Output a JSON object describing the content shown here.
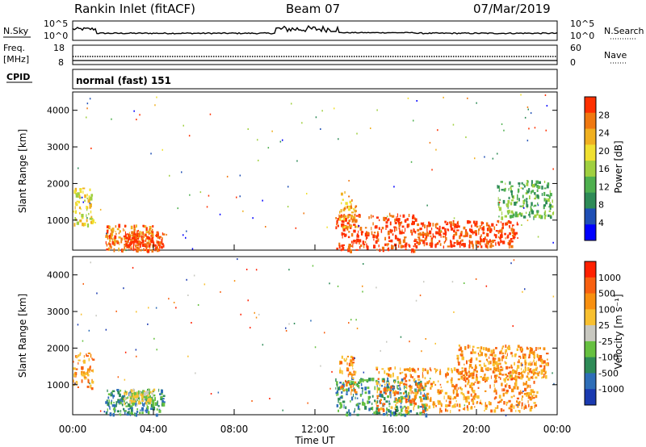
{
  "header": {
    "site": "Rankin Inlet (fitACF)",
    "beam": "Beam 07",
    "date": "07/Mar/2019"
  },
  "nsky_panel": {
    "left_label": "N.Sky",
    "right_label": "N.Search",
    "ticks_left": [
      "10^5",
      "10^0"
    ],
    "ticks_right": [
      "10^5",
      "10^0"
    ]
  },
  "freq_panel": {
    "left_label_1": "Freq.",
    "left_label_2": "[MHz]",
    "right_label": "Nave",
    "ticks_left": [
      "18",
      "8"
    ],
    "ticks_right": [
      "60",
      "0"
    ]
  },
  "cpid_panel": {
    "label": "CPID",
    "text": "normal (fast) 151"
  },
  "chart_data": [
    {
      "type": "heatmap",
      "name": "power",
      "ylabel": "Slant Range [km]",
      "yticks": [
        1000,
        2000,
        3000,
        4000
      ],
      "ylim": [
        180,
        4500
      ],
      "xlim": [
        0,
        24
      ],
      "colorbar_label": "Power [dB]",
      "colorbar_ticks": [
        "4",
        "8",
        "12",
        "16",
        "20",
        "24",
        "28"
      ],
      "colorbar_colors": [
        "#0000ff",
        "#1f4fb5",
        "#2e8b57",
        "#4fb04f",
        "#a0d040",
        "#f0e030",
        "#f0b020",
        "#f07810",
        "#ff3000"
      ],
      "blobs": [
        {
          "t0": 0.0,
          "t1": 1.0,
          "r0": 900,
          "r1": 1900,
          "level": 5
        },
        {
          "t0": 1.6,
          "t1": 4.0,
          "r0": 200,
          "r1": 900,
          "level": 7
        },
        {
          "t0": 2.5,
          "t1": 4.5,
          "r0": 200,
          "r1": 700,
          "level": 8
        },
        {
          "t0": 13.0,
          "t1": 17.0,
          "r0": 200,
          "r1": 1200,
          "level": 8
        },
        {
          "t0": 17.0,
          "t1": 22.0,
          "r0": 300,
          "r1": 1000,
          "level": 8
        },
        {
          "t0": 21.0,
          "t1": 23.8,
          "r0": 1100,
          "r1": 2100,
          "level": 3
        },
        {
          "t0": 13.2,
          "t1": 14.0,
          "r0": 800,
          "r1": 1800,
          "level": 6
        }
      ]
    },
    {
      "type": "heatmap",
      "name": "velocity",
      "ylabel": "Slant Range [km]",
      "yticks": [
        1000,
        2000,
        3000,
        4000
      ],
      "ylim": [
        180,
        4500
      ],
      "xlim": [
        0,
        24
      ],
      "colorbar_label": "Velocity [m s⁻¹]",
      "colorbar_ticks": [
        "1000",
        "500",
        "100",
        "25",
        "-25",
        "-100",
        "-500",
        "-1000"
      ],
      "colorbar_colors": [
        "#1a3ab0",
        "#2e6eb8",
        "#2e8b57",
        "#66c040",
        "#c8c8c0",
        "#f8c030",
        "#f89010",
        "#f86010",
        "#ff2000"
      ],
      "blobs": [
        {
          "t0": 0.0,
          "t1": 1.0,
          "r0": 900,
          "r1": 1900,
          "level": 6
        },
        {
          "t0": 1.6,
          "t1": 4.5,
          "r0": 200,
          "r1": 900,
          "level": 2
        },
        {
          "t0": 2.5,
          "t1": 4.0,
          "r0": 500,
          "r1": 900,
          "level": 4
        },
        {
          "t0": 13.0,
          "t1": 17.5,
          "r0": 200,
          "r1": 1200,
          "level": 2
        },
        {
          "t0": 15.0,
          "t1": 23.0,
          "r0": 300,
          "r1": 1500,
          "level": 6
        },
        {
          "t0": 19.0,
          "t1": 23.5,
          "r0": 1200,
          "r1": 2100,
          "level": 6
        },
        {
          "t0": 13.2,
          "t1": 14.0,
          "r0": 800,
          "r1": 1800,
          "level": 6
        }
      ]
    }
  ],
  "xaxis": {
    "label": "Time UT",
    "ticks": [
      "00:00",
      "04:00",
      "08:00",
      "12:00",
      "16:00",
      "20:00",
      "00:00"
    ]
  }
}
